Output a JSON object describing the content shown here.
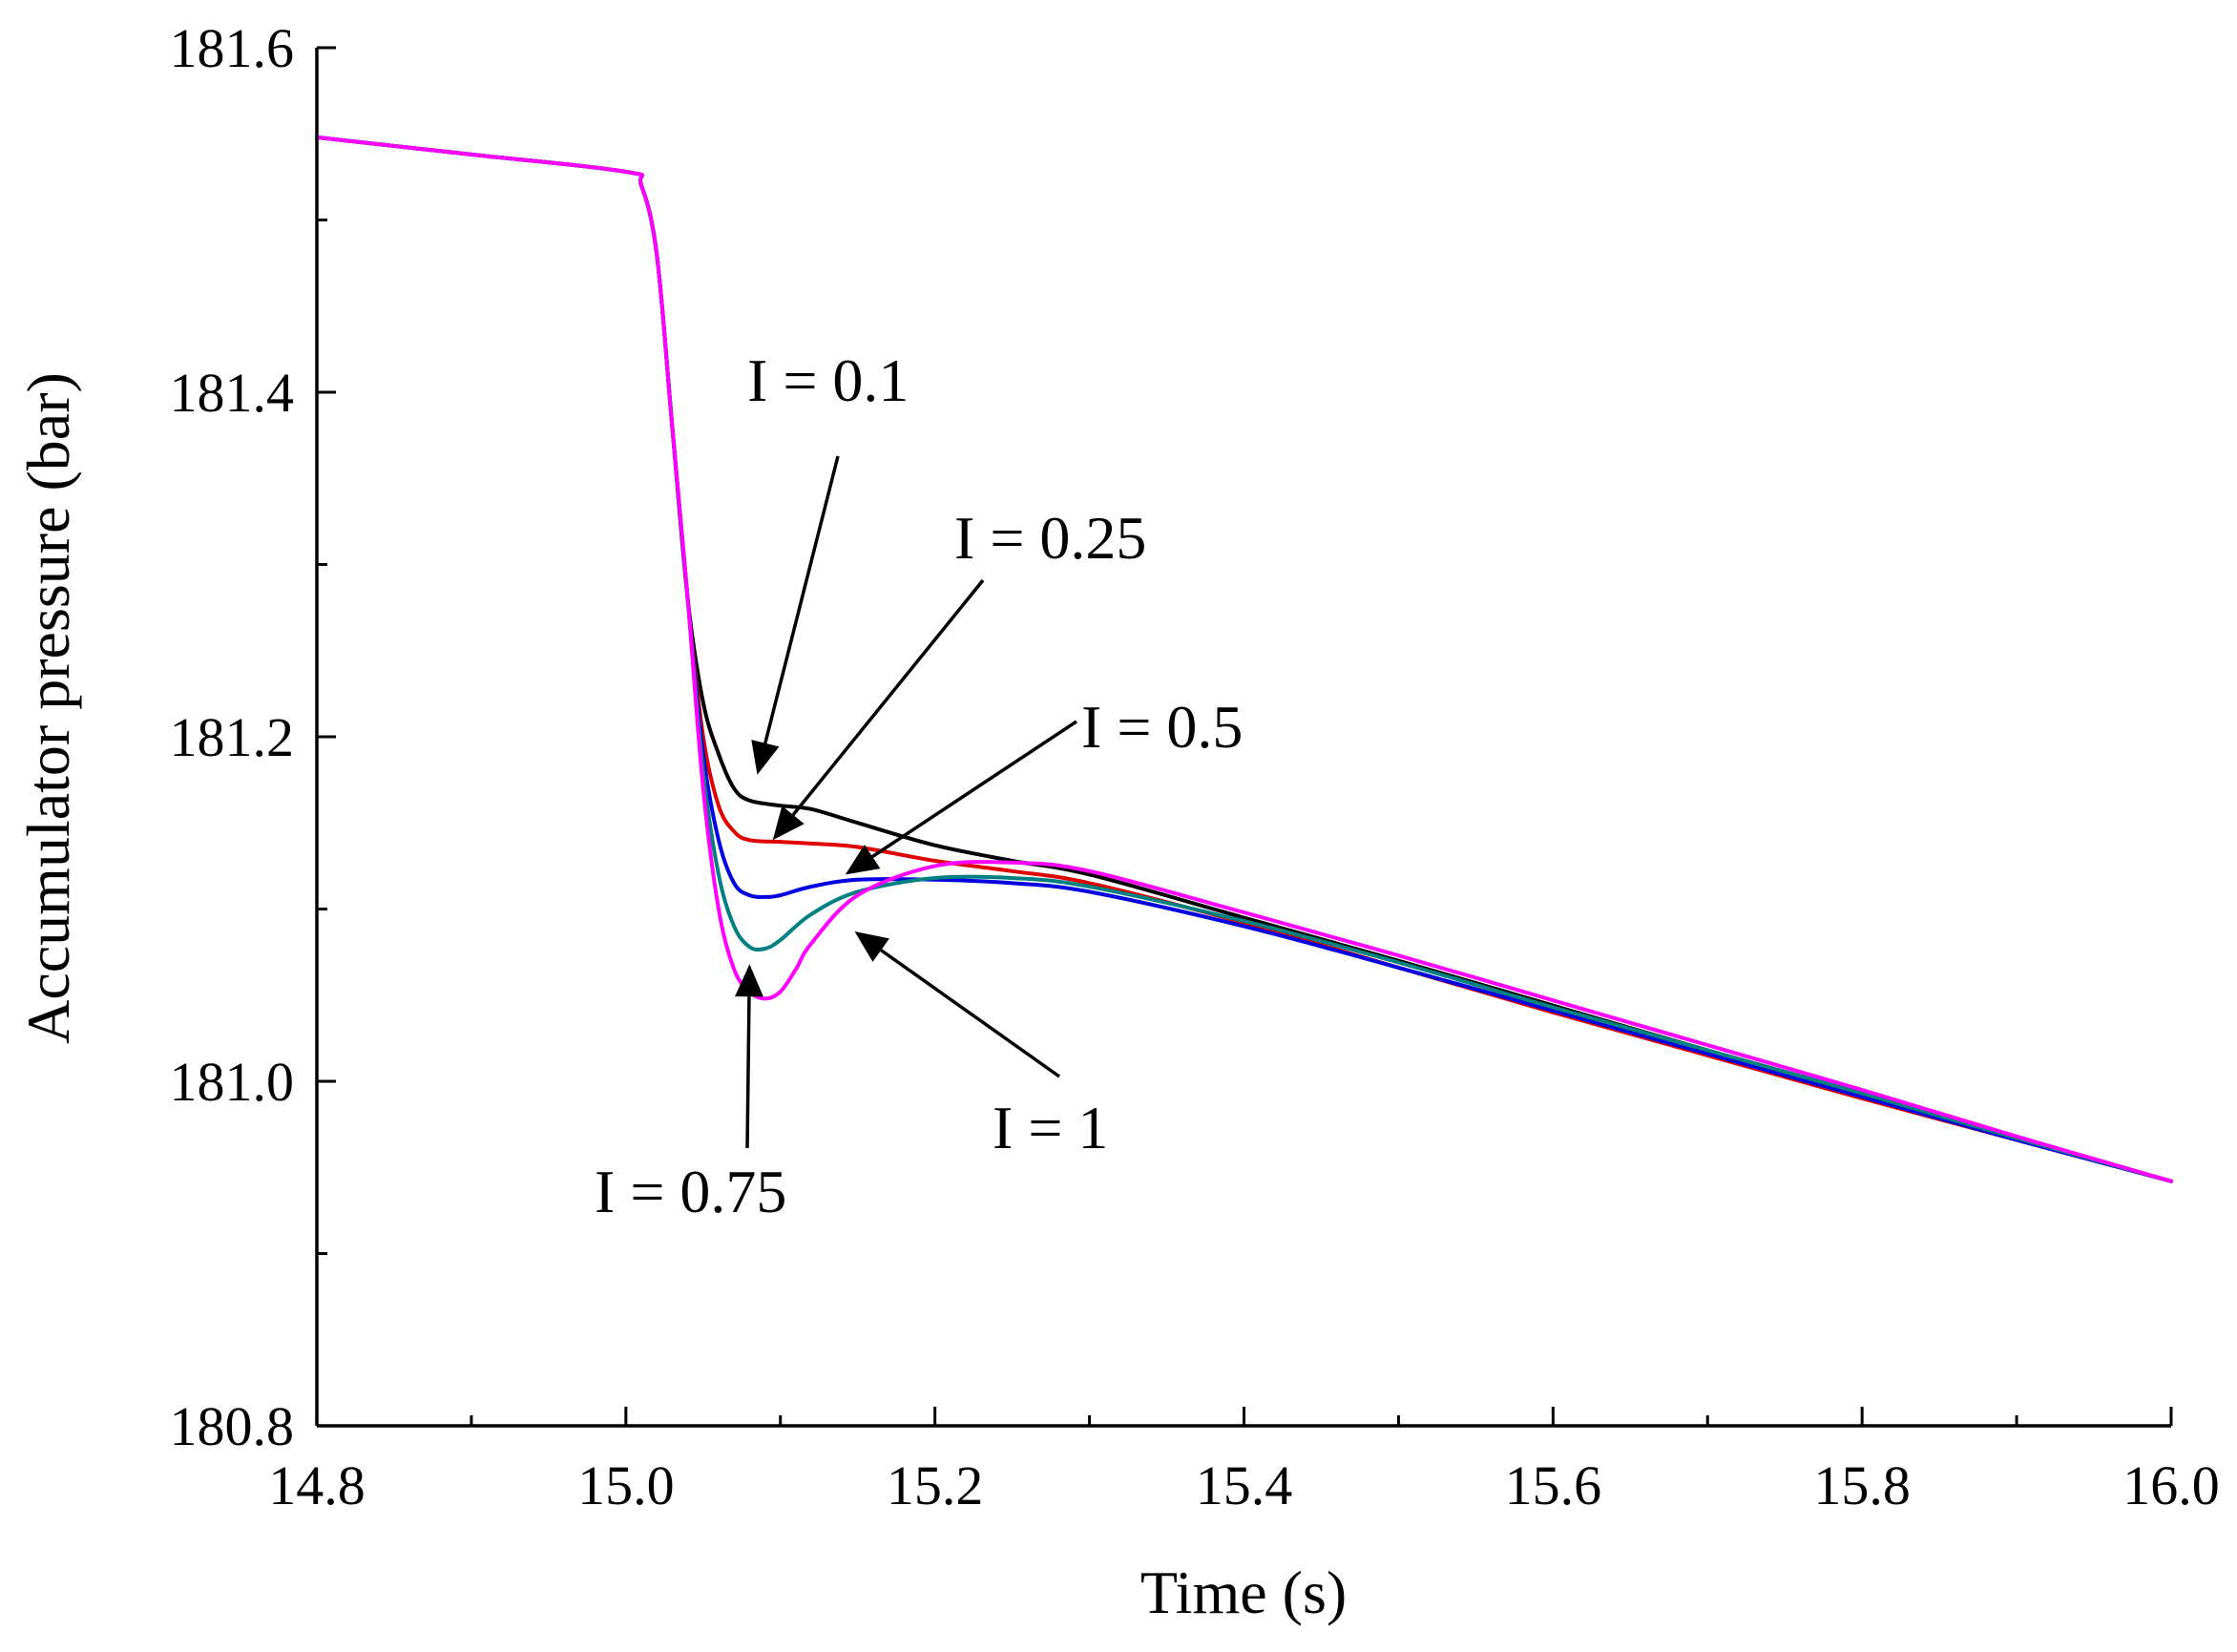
{
  "chart_data": {
    "type": "line",
    "title": "",
    "xlabel": "Time (s)",
    "ylabel": "Accumulator pressure  (bar)",
    "xlim": [
      14.8,
      16.0
    ],
    "ylim": [
      180.8,
      181.6
    ],
    "xticks": [
      14.8,
      15.0,
      15.2,
      15.4,
      15.6,
      15.8,
      16.0
    ],
    "xtick_labels": [
      "14.8",
      "15.0",
      "15.2",
      "15.4",
      "15.6",
      "15.8",
      "16.0"
    ],
    "yticks": [
      180.8,
      181.0,
      181.2,
      181.4,
      181.6
    ],
    "ytick_labels": [
      "180.8",
      "181.0",
      "181.2",
      "181.4",
      "181.6"
    ],
    "grid": false,
    "series": [
      {
        "name": "I = 0.1",
        "color": "#000000",
        "x": [
          14.8,
          14.9,
          15.0,
          15.01,
          15.02,
          15.03,
          15.04,
          15.05,
          15.06,
          15.07,
          15.08,
          15.1,
          15.12,
          15.15,
          15.2,
          15.25,
          15.3,
          15.4,
          15.5,
          15.6,
          15.7,
          15.8,
          15.9,
          16.0
        ],
        "y": [
          181.548,
          181.538,
          181.528,
          181.52,
          181.48,
          181.38,
          181.28,
          181.22,
          181.19,
          181.17,
          181.163,
          181.16,
          181.158,
          181.15,
          181.137,
          181.128,
          181.12,
          181.095,
          181.07,
          181.044,
          181.018,
          180.993,
          180.967,
          180.942
        ]
      },
      {
        "name": "I = 0.25",
        "color": "#e00000",
        "x": [
          14.8,
          14.9,
          15.0,
          15.01,
          15.02,
          15.03,
          15.04,
          15.05,
          15.06,
          15.07,
          15.08,
          15.1,
          15.12,
          15.15,
          15.2,
          15.25,
          15.3,
          15.4,
          15.5,
          15.6,
          15.7,
          15.8,
          15.9,
          16.0
        ],
        "y": [
          181.548,
          181.538,
          181.528,
          181.52,
          181.48,
          181.38,
          181.28,
          181.2,
          181.16,
          181.145,
          181.14,
          181.139,
          181.138,
          181.136,
          181.128,
          181.122,
          181.115,
          181.092,
          181.066,
          181.04,
          181.015,
          180.99,
          180.966,
          180.942
        ]
      },
      {
        "name": "I = 0.5",
        "color": "#0000e0",
        "x": [
          14.8,
          14.9,
          15.0,
          15.01,
          15.02,
          15.03,
          15.04,
          15.05,
          15.06,
          15.07,
          15.08,
          15.09,
          15.1,
          15.12,
          15.15,
          15.2,
          15.25,
          15.3,
          15.4,
          15.5,
          15.6,
          15.7,
          15.8,
          15.9,
          16.0
        ],
        "y": [
          181.548,
          181.538,
          181.528,
          181.52,
          181.48,
          181.38,
          181.28,
          181.19,
          181.14,
          181.115,
          181.108,
          181.107,
          181.108,
          181.113,
          181.117,
          181.117,
          181.115,
          181.11,
          181.09,
          181.066,
          181.041,
          181.016,
          180.991,
          180.966,
          180.942
        ]
      },
      {
        "name": "I = 0.75",
        "color": "#008080",
        "x": [
          14.8,
          14.9,
          15.0,
          15.01,
          15.02,
          15.03,
          15.04,
          15.05,
          15.06,
          15.07,
          15.08,
          15.09,
          15.1,
          15.12,
          15.15,
          15.2,
          15.25,
          15.3,
          15.4,
          15.5,
          15.6,
          15.7,
          15.8,
          15.9,
          16.0
        ],
        "y": [
          181.548,
          181.538,
          181.528,
          181.52,
          181.48,
          181.38,
          181.28,
          181.18,
          181.12,
          181.09,
          181.078,
          181.077,
          181.082,
          181.097,
          181.11,
          181.118,
          181.118,
          181.113,
          181.093,
          181.069,
          181.043,
          181.018,
          180.993,
          180.967,
          180.942
        ]
      },
      {
        "name": "I = 1",
        "color": "#ff00ff",
        "x": [
          14.8,
          14.9,
          15.0,
          15.01,
          15.02,
          15.03,
          15.04,
          15.05,
          15.06,
          15.07,
          15.08,
          15.09,
          15.1,
          15.11,
          15.12,
          15.15,
          15.2,
          15.25,
          15.3,
          15.4,
          15.5,
          15.6,
          15.7,
          15.8,
          15.9,
          16.0
        ],
        "y": [
          181.548,
          181.538,
          181.528,
          181.52,
          181.48,
          181.38,
          181.28,
          181.17,
          181.1,
          181.065,
          181.052,
          181.048,
          181.052,
          181.065,
          181.08,
          181.108,
          181.125,
          181.127,
          181.122,
          181.098,
          181.073,
          181.047,
          181.021,
          180.995,
          180.968,
          180.942
        ]
      }
    ],
    "annotations": [
      {
        "text": "I = 0.1",
        "target": [
          15.085,
          181.178
        ]
      },
      {
        "text": "I = 0.25",
        "target": [
          15.095,
          181.14
        ]
      },
      {
        "text": "I = 0.5",
        "target": [
          15.142,
          181.12
        ]
      },
      {
        "text": "I = 0.75",
        "target": [
          15.08,
          181.068
        ]
      },
      {
        "text": "I = 1",
        "target": [
          15.148,
          181.087
        ]
      }
    ]
  }
}
